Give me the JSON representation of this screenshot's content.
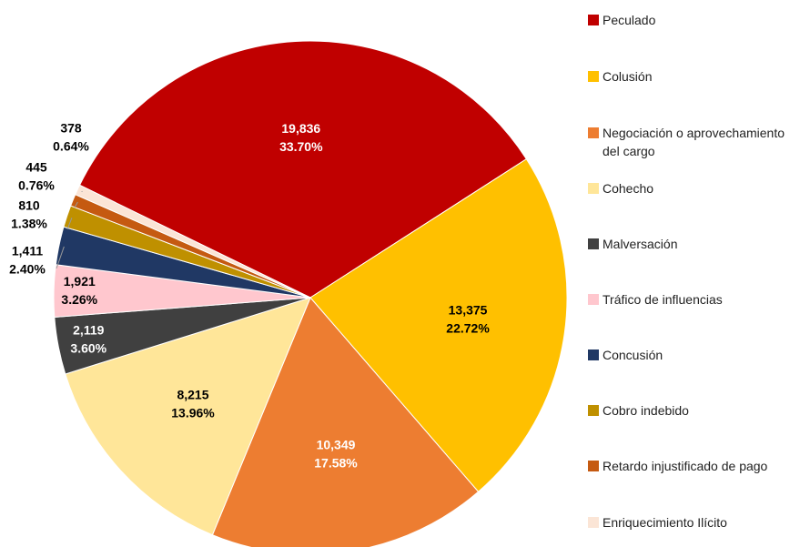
{
  "chart_data": {
    "type": "pie",
    "categories": [
      "Peculado",
      "Colusión",
      "Negociación o aprovechamiento del cargo",
      "Cohecho",
      "Malversación",
      "Tráfico de influencias",
      "Concusión",
      "Cobro indebido",
      "Retardo injustificado de pago",
      "Enriquecimiento Ilícito"
    ],
    "values": [
      19836,
      13375,
      10349,
      8215,
      2119,
      1921,
      1411,
      810,
      445,
      378
    ],
    "value_labels": [
      "19,836",
      "13,375",
      "10,349",
      "8,215",
      "2,119",
      "1,921",
      "1,411",
      "810",
      "445",
      "378"
    ],
    "percentages": [
      33.7,
      22.72,
      17.58,
      13.96,
      3.6,
      3.26,
      2.4,
      1.38,
      0.76,
      0.64
    ],
    "percentage_labels": [
      "33.70%",
      "22.72%",
      "17.58%",
      "13.96%",
      "3.60%",
      "3.26%",
      "2.40%",
      "1.38%",
      "0.76%",
      "0.64%"
    ],
    "colors": [
      "#c00000",
      "#ffc000",
      "#ed7d31",
      "#ffe699",
      "#404040",
      "#ffc7ce",
      "#203864",
      "#bf9000",
      "#c55a11",
      "#fbe5d6"
    ],
    "legend": "right"
  }
}
